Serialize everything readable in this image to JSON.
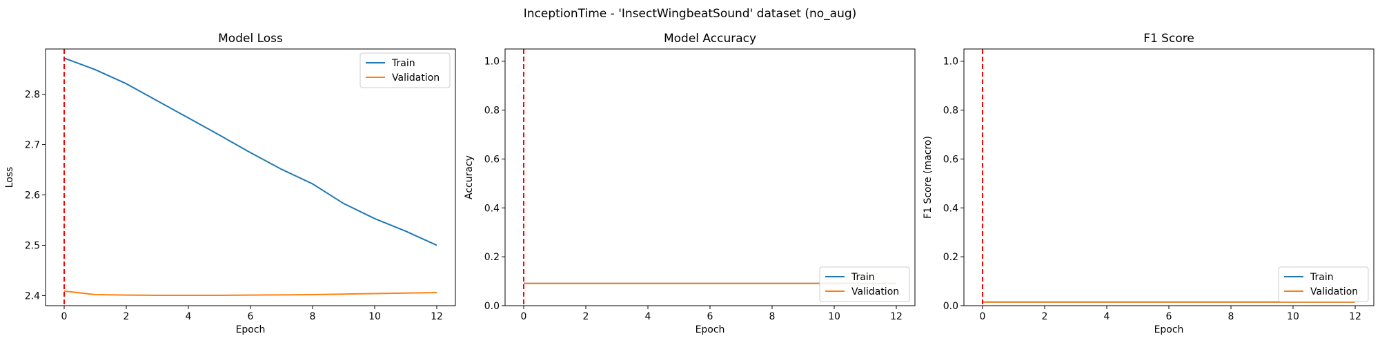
{
  "figure": {
    "title": "InceptionTime - 'InsectWingbeatSound' dataset (no_aug)"
  },
  "colors": {
    "train": "#1f77b4",
    "validation": "#ff7f0e",
    "marker_line": "#ff0000",
    "axes": "#000000",
    "legend_border": "#cccccc"
  },
  "chart_data": [
    {
      "type": "line",
      "title": "Model Loss",
      "xlabel": "Epoch",
      "ylabel": "Loss",
      "xlim": [
        -0.6,
        12.6
      ],
      "ylim": [
        2.38,
        2.89
      ],
      "xticks": [
        0,
        2,
        4,
        6,
        8,
        10,
        12
      ],
      "yticks": [
        2.4,
        2.5,
        2.6,
        2.7,
        2.8
      ],
      "tick_decimals": 1,
      "vline_x": 0,
      "legend_position": "upper right",
      "grid": false,
      "x": [
        0,
        1,
        2,
        3,
        4,
        5,
        6,
        7,
        8,
        9,
        10,
        11,
        12
      ],
      "series": [
        {
          "name": "Train",
          "color_key": "train",
          "values": [
            2.872,
            2.849,
            2.821,
            2.787,
            2.753,
            2.719,
            2.684,
            2.651,
            2.622,
            2.583,
            2.553,
            2.528,
            2.5
          ]
        },
        {
          "name": "Validation",
          "color_key": "validation",
          "values": [
            2.409,
            2.402,
            2.401,
            2.4005,
            2.4005,
            2.4005,
            2.401,
            2.4015,
            2.402,
            2.403,
            2.404,
            2.405,
            2.406
          ]
        }
      ]
    },
    {
      "type": "line",
      "title": "Model Accuracy",
      "xlabel": "Epoch",
      "ylabel": "Accuracy",
      "xlim": [
        -0.6,
        12.6
      ],
      "ylim": [
        0.0,
        1.05
      ],
      "xticks": [
        0,
        2,
        4,
        6,
        8,
        10,
        12
      ],
      "yticks": [
        0.0,
        0.2,
        0.4,
        0.6,
        0.8,
        1.0
      ],
      "tick_decimals": 1,
      "vline_x": 0,
      "legend_position": "lower right",
      "grid": false,
      "x": [
        0,
        1,
        2,
        3,
        4,
        5,
        6,
        7,
        8,
        9,
        10,
        11,
        12
      ],
      "series": [
        {
          "name": "Train",
          "color_key": "train",
          "values": [
            0.091,
            0.091,
            0.091,
            0.091,
            0.091,
            0.091,
            0.091,
            0.091,
            0.091,
            0.091,
            0.091,
            0.091,
            0.091
          ]
        },
        {
          "name": "Validation",
          "color_key": "validation",
          "values": [
            0.091,
            0.091,
            0.091,
            0.091,
            0.091,
            0.091,
            0.091,
            0.091,
            0.091,
            0.091,
            0.091,
            0.091,
            0.091
          ]
        }
      ]
    },
    {
      "type": "line",
      "title": "F1 Score",
      "xlabel": "Epoch",
      "ylabel": "F1 Score (macro)",
      "xlim": [
        -0.6,
        12.6
      ],
      "ylim": [
        0.0,
        1.05
      ],
      "xticks": [
        0,
        2,
        4,
        6,
        8,
        10,
        12
      ],
      "yticks": [
        0.0,
        0.2,
        0.4,
        0.6,
        0.8,
        1.0
      ],
      "tick_decimals": 1,
      "vline_x": 0,
      "legend_position": "lower right",
      "grid": false,
      "x": [
        0,
        1,
        2,
        3,
        4,
        5,
        6,
        7,
        8,
        9,
        10,
        11,
        12
      ],
      "series": [
        {
          "name": "Train",
          "color_key": "train",
          "values": [
            0.015,
            0.015,
            0.015,
            0.015,
            0.015,
            0.015,
            0.015,
            0.015,
            0.015,
            0.015,
            0.015,
            0.015,
            0.015
          ]
        },
        {
          "name": "Validation",
          "color_key": "validation",
          "values": [
            0.015,
            0.015,
            0.015,
            0.015,
            0.015,
            0.015,
            0.015,
            0.015,
            0.015,
            0.015,
            0.015,
            0.015,
            0.015
          ]
        }
      ]
    }
  ]
}
